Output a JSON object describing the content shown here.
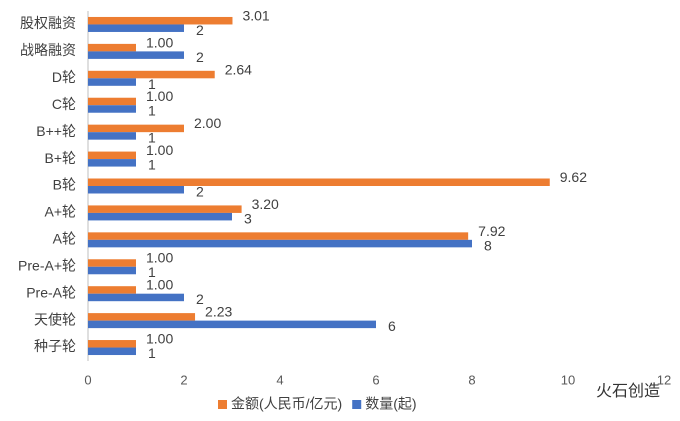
{
  "chart_data": {
    "type": "hbar",
    "categories": [
      "股权融资",
      "战略融资",
      "D轮",
      "C轮",
      "B++轮",
      "B+轮",
      "B轮",
      "A+轮",
      "A轮",
      "Pre-A+轮",
      "Pre-A轮",
      "天使轮",
      "种子轮"
    ],
    "series": [
      {
        "name": "金额(人民币/亿元)",
        "color": "#ed7d31",
        "values": [
          3.01,
          1.0,
          2.64,
          1.0,
          2.0,
          1.0,
          9.62,
          3.2,
          7.92,
          1.0,
          1.0,
          2.23,
          1.0
        ],
        "value_labels": [
          "3.01",
          "1.00",
          "2.64",
          "1.00",
          "2.00",
          "1.00",
          "9.62",
          "3.20",
          "7.92",
          "1.00",
          "1.00",
          "2.23",
          "1.00"
        ]
      },
      {
        "name": "数量(起)",
        "color": "#4472c4",
        "values": [
          2,
          2,
          1,
          1,
          1,
          1,
          2,
          3,
          8,
          1,
          2,
          6,
          1
        ]
      }
    ],
    "xlim": [
      0,
      12
    ],
    "xticks": [
      0,
      2,
      4,
      6,
      8,
      10,
      12
    ],
    "grid": false,
    "legend": "bottom",
    "watermark": "火石创造"
  }
}
